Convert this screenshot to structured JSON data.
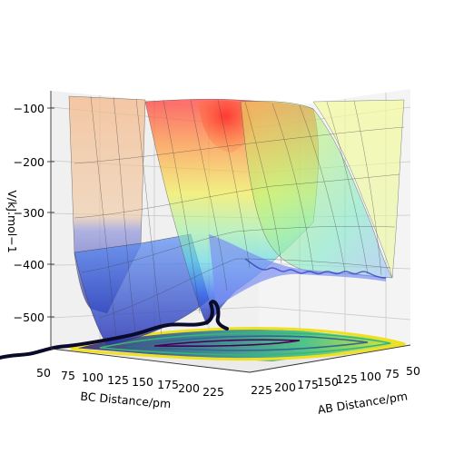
{
  "chart_data": {
    "type": "surface3d",
    "zlabel": "V/kJ.mol−1",
    "xlabel": "BC Distance/pm",
    "ylabel": "AB Distance/pm",
    "z_ticks": [
      "−100",
      "−200",
      "−300",
      "−400",
      "−500"
    ],
    "z_tick_values": [
      -100,
      -200,
      -300,
      -400,
      -500
    ],
    "x_ticks": [
      "50",
      "75",
      "100",
      "125",
      "150",
      "175",
      "200",
      "225"
    ],
    "y_ticks": [
      "50",
      "75",
      "100",
      "125",
      "150",
      "175",
      "200",
      "225"
    ],
    "zlim": [
      -560,
      -80
    ],
    "colormap": "jet",
    "floor_projection": "contour",
    "trajectory": "present",
    "grid": true
  }
}
